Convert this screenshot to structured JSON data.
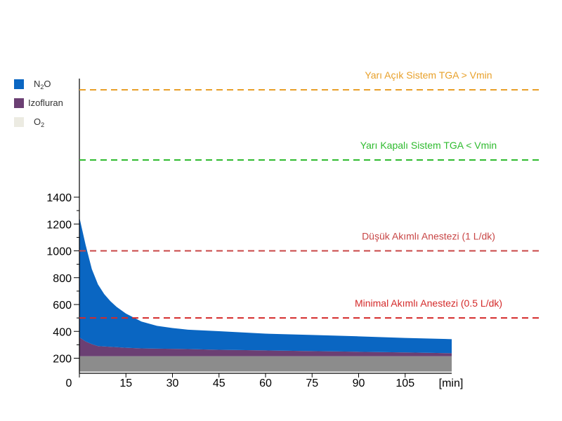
{
  "legend": [
    {
      "label_main": "N",
      "label_sub": "2",
      "label_tail": "O",
      "color": "#0a66c2",
      "style": "short"
    },
    {
      "label_main": "Izofluran",
      "label_sub": "",
      "label_tail": "",
      "color": "#6b3f73",
      "style": "long"
    },
    {
      "label_main": "O",
      "label_sub": "2",
      "label_tail": "",
      "color": "#ecebe2",
      "style": "short"
    }
  ],
  "chart_data": {
    "type": "area",
    "stacked": true,
    "xlabel": "[min]",
    "ylabel": "",
    "xlim": [
      0,
      120
    ],
    "ylim": [
      100,
      1600
    ],
    "x_ticks": [
      0,
      15,
      30,
      45,
      60,
      75,
      90,
      105
    ],
    "y_ticks": [
      200,
      400,
      600,
      800,
      1000,
      1200,
      1400
    ],
    "series": [
      {
        "name": "O2",
        "color": "#8c8c8c",
        "x": [
          0,
          120
        ],
        "values": [
          215,
          215
        ]
      },
      {
        "name": "Izofluran",
        "color": "#6b3f73",
        "x": [
          0,
          2,
          4,
          6,
          10,
          15,
          20,
          30,
          45,
          60,
          75,
          90,
          105,
          120
        ],
        "values": [
          140,
          110,
          90,
          75,
          70,
          63,
          58,
          55,
          48,
          43,
          38,
          33,
          28,
          22
        ]
      },
      {
        "name": "N2O",
        "color": "#0a66c2",
        "x": [
          0,
          2,
          4,
          6,
          8,
          10,
          12,
          15,
          20,
          25,
          30,
          35,
          45,
          60,
          75,
          90,
          105,
          120
        ],
        "values": [
          895,
          720,
          560,
          460,
          390,
          340,
          300,
          255,
          200,
          170,
          155,
          145,
          138,
          125,
          120,
          115,
          108,
          105
        ]
      }
    ],
    "reference_lines": [
      {
        "label": "Yarı Açık Sistem TGA > Vmin",
        "value": 1980,
        "color": "#e8a02a"
      },
      {
        "label": "Yarı Kapalı Sistem TGA < Vmin",
        "value": 1640,
        "color": "#2fbb2f"
      },
      {
        "label": "Düşük Akımlı Anestezi (1 L/dk)",
        "value": 1000,
        "color": "#c84646"
      },
      {
        "label": "Minimal Akımlı Anestezi (0.5 L/dk)",
        "value": 500,
        "color": "#d42a2a"
      }
    ]
  }
}
